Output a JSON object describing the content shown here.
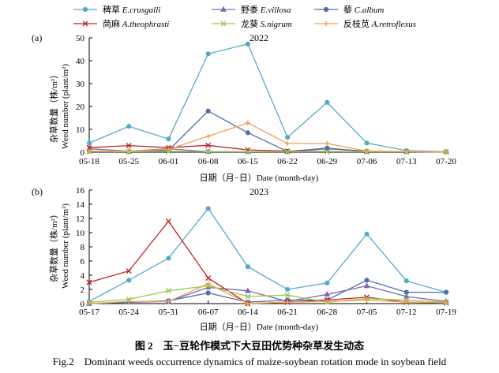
{
  "legend": [
    {
      "name": "稗草",
      "latin": "E.crusgalli",
      "color": "#55aacc",
      "marker": "circle"
    },
    {
      "name": "野黍",
      "latin": "E.villosa",
      "color": "#7f67b0",
      "marker": "triangle"
    },
    {
      "name": "藜",
      "latin": "C.album",
      "color": "#4a72aa",
      "marker": "circle"
    },
    {
      "name": "苘麻",
      "latin": "A.theophrasti",
      "color": "#c02424",
      "marker": "x"
    },
    {
      "name": "龙葵",
      "latin": "S.nigrum",
      "color": "#99c855",
      "marker": "x"
    },
    {
      "name": "反枝苋",
      "latin": "A.retroflexus",
      "color": "#f0a050",
      "marker": "plus"
    }
  ],
  "chart_data": [
    {
      "panel": "(a)",
      "type": "line",
      "title": "2022",
      "xlabel": "日期（月−日）Date (month-day)",
      "ylabel": [
        "杂草数量（株/m²）",
        "Weed number (plant/m²)"
      ],
      "categories": [
        "05-18",
        "05-25",
        "06-01",
        "06-08",
        "06-15",
        "06-22",
        "06-29",
        "07-06",
        "07-13",
        "07-20"
      ],
      "ylim": [
        0,
        50
      ],
      "yticks": [
        0,
        10,
        20,
        30,
        40,
        50
      ],
      "series": [
        {
          "name": "稗草 E.crusgalli",
          "values": [
            4,
            11.3,
            5.8,
            43,
            47.3,
            6.5,
            21.8,
            4,
            0.7,
            0.2
          ]
        },
        {
          "name": "野黍 E.villosa",
          "values": [
            1.5,
            0.5,
            1.5,
            0.2,
            0.2,
            0.2,
            1.5,
            0.5,
            0.2,
            0.2
          ]
        },
        {
          "name": "藜 C.album",
          "values": [
            0.5,
            0.2,
            0.8,
            18,
            8.5,
            0.3,
            1.8,
            0.3,
            0.2,
            0.1
          ]
        },
        {
          "name": "苘麻 A.theophrasti",
          "values": [
            2,
            2.9,
            2,
            3,
            1,
            0.5,
            0.3,
            0.2,
            0.2,
            0.1
          ]
        },
        {
          "name": "龙葵 S.nigrum",
          "values": [
            0.3,
            0.2,
            0.3,
            0.3,
            0.2,
            0.2,
            0.3,
            0.2,
            0.2,
            0.1
          ]
        },
        {
          "name": "反枝苋 A.retroflexus",
          "values": [
            0.5,
            0.5,
            1.2,
            7,
            12.8,
            3.8,
            3.8,
            0.5,
            0.3,
            0.2
          ]
        }
      ]
    },
    {
      "panel": "(b)",
      "type": "line",
      "title": "2023",
      "xlabel": "日期（月−日）Date (month-day)",
      "ylabel": [
        "杂草数量（株/m²）",
        "Weed number (plant/m²)"
      ],
      "categories": [
        "05-17",
        "05-24",
        "05-31",
        "06-07",
        "06-14",
        "06-21",
        "06-28",
        "07-05",
        "07-12",
        "07-19"
      ],
      "ylim": [
        0,
        16
      ],
      "yticks": [
        0,
        2,
        4,
        6,
        8,
        10,
        12,
        14,
        16
      ],
      "series": [
        {
          "name": "稗草 E.crusgalli",
          "values": [
            0.3,
            3.3,
            6.4,
            13.4,
            5.2,
            2,
            2.9,
            9.8,
            3.2,
            1.6
          ]
        },
        {
          "name": "野黍 E.villosa",
          "values": [
            0,
            0.2,
            0.3,
            2.3,
            1.8,
            0.3,
            1.3,
            2.5,
            1,
            0.3
          ]
        },
        {
          "name": "藜 C.album",
          "values": [
            0,
            0.2,
            0.4,
            1.5,
            0.2,
            0.5,
            0.5,
            3.3,
            1.6,
            1.6
          ]
        },
        {
          "name": "苘麻 A.theophrasti",
          "values": [
            3,
            4.6,
            11.6,
            3.6,
            0,
            0.2,
            0.5,
            0.9,
            0.2,
            0.1
          ]
        },
        {
          "name": "龙葵 S.nigrum",
          "values": [
            0.2,
            0.6,
            1.8,
            2.5,
            1,
            1.2,
            0.2,
            0.7,
            0.5,
            0.2
          ]
        },
        {
          "name": "反枝苋 A.retroflexus",
          "values": [
            0,
            0.3,
            0.3,
            2.8,
            0,
            0.2,
            0.3,
            0.5,
            0.2,
            0.1
          ]
        }
      ]
    }
  ],
  "caption": {
    "zh": "图 2　玉−豆轮作模式下大豆田优势种杂草发生动态",
    "en": "Fig.2　Dominant weeds occurrence dynamics of maize-soybean rotation mode in soybean field"
  }
}
